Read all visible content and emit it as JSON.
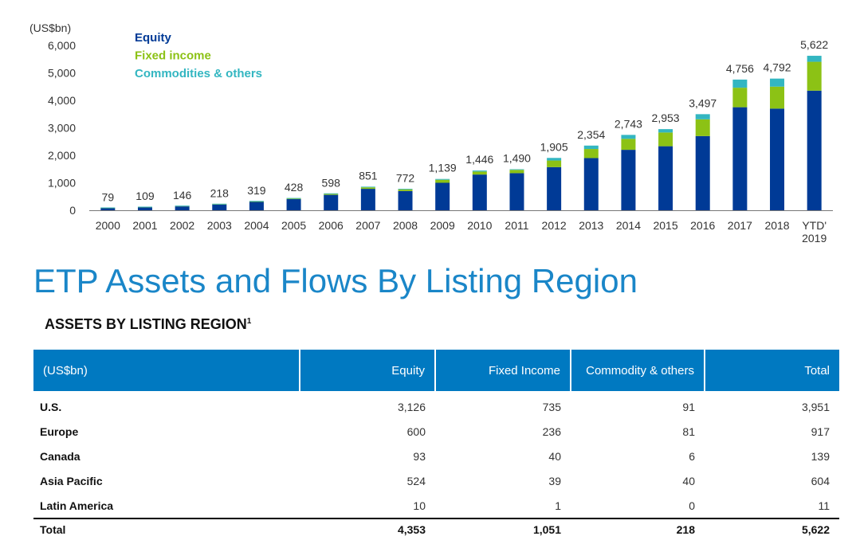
{
  "chart_data": {
    "type": "bar",
    "stacked": true,
    "unit_label": "(US$bn)",
    "categories": [
      "2000",
      "2001",
      "2002",
      "2003",
      "2004",
      "2005",
      "2006",
      "2007",
      "2008",
      "2009",
      "2010",
      "2011",
      "2012",
      "2013",
      "2014",
      "2015",
      "2016",
      "2017",
      "2018",
      "YTD' 2019"
    ],
    "series": [
      {
        "name": "Equity",
        "color": "#003a96",
        "values": [
          74,
          104,
          140,
          208,
          304,
          405,
          561,
          780,
          700,
          1000,
          1300,
          1350,
          1570,
          1900,
          2200,
          2330,
          2700,
          3750,
          3700,
          4353
        ]
      },
      {
        "name": "Fixed income",
        "color": "#8cc215",
        "values": [
          4,
          4,
          5,
          8,
          12,
          19,
          32,
          55,
          60,
          110,
          110,
          120,
          240,
          330,
          400,
          500,
          610,
          710,
          800,
          1051
        ]
      },
      {
        "name": "Commodities & others",
        "color": "#33b6c1",
        "values": [
          1,
          1,
          1,
          2,
          3,
          4,
          5,
          16,
          12,
          29,
          36,
          20,
          95,
          124,
          143,
          123,
          187,
          296,
          292,
          218
        ]
      }
    ],
    "totals": [
      79,
      109,
      146,
      218,
      319,
      428,
      598,
      851,
      772,
      1139,
      1446,
      1490,
      1905,
      2354,
      2743,
      2953,
      3497,
      4756,
      4792,
      5622
    ],
    "total_labels": [
      "79",
      "109",
      "146",
      "218",
      "319",
      "428",
      "598",
      "851",
      "772",
      "1,139",
      "1,446",
      "1,490",
      "1,905",
      "2,354",
      "2,743",
      "2,953",
      "3,497",
      "4,756",
      "4,792",
      "5,622"
    ],
    "y_ticks": [
      0,
      1000,
      2000,
      3000,
      4000,
      5000,
      6000
    ],
    "y_tick_labels": [
      "0",
      "1,000",
      "2,000",
      "3,000",
      "4,000",
      "5,000",
      "6,000"
    ],
    "ylim": [
      0,
      6000
    ],
    "legend_position": "top-left",
    "grid": false
  },
  "section": {
    "title": "ETP Assets and Flows By Listing Region",
    "subtitle": "ASSETS BY LISTING REGION",
    "subtitle_sup": "1"
  },
  "table": {
    "headers": [
      "(US$bn)",
      "Equity",
      "Fixed Income",
      "Commodity & others",
      "Total"
    ],
    "rows": [
      [
        "U.S.",
        "3,126",
        "735",
        "91",
        "3,951"
      ],
      [
        "Europe",
        "600",
        "236",
        "81",
        "917"
      ],
      [
        "Canada",
        "93",
        "40",
        "6",
        "139"
      ],
      [
        "Asia Pacific",
        "524",
        "39",
        "40",
        "604"
      ],
      [
        "Latin America",
        "10",
        "1",
        "0",
        "11"
      ]
    ],
    "total_row": [
      "Total",
      "4,353",
      "1,051",
      "218",
      "5,622"
    ]
  }
}
